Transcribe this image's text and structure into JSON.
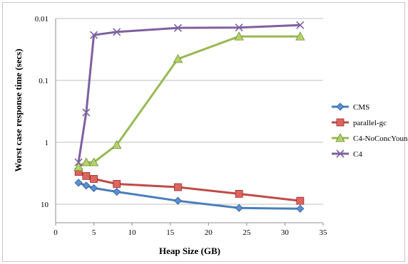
{
  "chart_data": {
    "type": "line",
    "xlabel": "Heap Size (GB)",
    "ylabel": "Worst case response time (secs)",
    "xlim": [
      0,
      35
    ],
    "xticks": [
      "0",
      "5",
      "10",
      "15",
      "20",
      "25",
      "30",
      "35"
    ],
    "yscale": "log-reversed",
    "yticks": [
      "0.01",
      "0.1",
      "1",
      "10"
    ],
    "ylim": [
      0.01,
      10
    ],
    "grid": "horizontal",
    "legend": "right",
    "series": [
      {
        "name": "CMS",
        "color": "#4a7ebb",
        "marker": "diamond",
        "points": [
          [
            3,
            4.5
          ],
          [
            4,
            5.0
          ],
          [
            5,
            5.5
          ],
          [
            8,
            6.3
          ],
          [
            16,
            8.8
          ],
          [
            24,
            11.5
          ],
          [
            32,
            11.8
          ]
        ]
      },
      {
        "name": "parallel-gc",
        "color": "#be4b48",
        "marker": "square",
        "points": [
          [
            3,
            3.0
          ],
          [
            4,
            3.5
          ],
          [
            5,
            3.9
          ],
          [
            8,
            4.7
          ],
          [
            16,
            5.3
          ],
          [
            24,
            6.8
          ],
          [
            32,
            8.8
          ]
        ]
      },
      {
        "name": "C4-NoConcYoung",
        "color": "#98b954",
        "marker": "triangle",
        "points": [
          [
            3,
            2.5
          ],
          [
            4,
            2.1
          ],
          [
            5,
            2.1
          ],
          [
            8,
            1.1
          ],
          [
            16,
            0.045
          ],
          [
            24,
            0.0195
          ],
          [
            32,
            0.0195
          ]
        ]
      },
      {
        "name": "C4",
        "color": "#7d60a0",
        "marker": "x",
        "points": [
          [
            3,
            2.1
          ],
          [
            4,
            0.33
          ],
          [
            5,
            0.0185
          ],
          [
            8,
            0.0165
          ],
          [
            16,
            0.0142
          ],
          [
            24,
            0.014
          ],
          [
            32,
            0.0128
          ]
        ]
      }
    ]
  }
}
